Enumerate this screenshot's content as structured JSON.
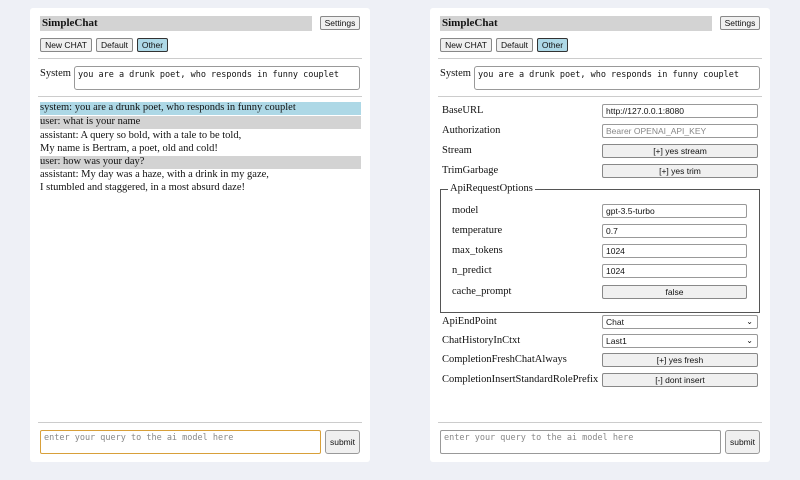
{
  "app_title": "SimpleChat",
  "settings_label": "Settings",
  "sessions": [
    "New CHAT",
    "Default",
    "Other"
  ],
  "system_label": "System",
  "system_prompt": "you are a drunk poet, who responds in funny couplet",
  "messages": [
    {
      "role": "system",
      "lines": [
        "system: you are a drunk poet, who responds in funny couplet"
      ]
    },
    {
      "role": "user",
      "lines": [
        "user: what is your name"
      ]
    },
    {
      "role": "assistant",
      "lines": [
        "assistant: A query so bold, with a tale to be told,",
        "My name is Bertram, a poet, old and cold!"
      ]
    },
    {
      "role": "user",
      "lines": [
        "user: how was your day?"
      ]
    },
    {
      "role": "assistant",
      "lines": [
        "assistant: My day was a haze, with a drink in my gaze,",
        "I stumbled and staggered, in a most absurd daze!"
      ]
    }
  ],
  "query_placeholder": "enter your query to the ai model here",
  "submit_label": "submit",
  "settings": {
    "base_url": {
      "label": "BaseURL",
      "value": "http://127.0.0.1:8080"
    },
    "authorization": {
      "label": "Authorization",
      "placeholder": "Bearer OPENAI_API_KEY"
    },
    "stream": {
      "label": "Stream",
      "value": "[+] yes stream"
    },
    "trim_garbage": {
      "label": "TrimGarbage",
      "value": "[+] yes trim"
    },
    "api_request_options": {
      "legend": "ApiRequestOptions",
      "model": {
        "label": "model",
        "value": "gpt-3.5-turbo"
      },
      "temperature": {
        "label": "temperature",
        "value": "0.7"
      },
      "max_tokens": {
        "label": "max_tokens",
        "value": "1024"
      },
      "n_predict": {
        "label": "n_predict",
        "value": "1024"
      },
      "cache_prompt": {
        "label": "cache_prompt",
        "value": "false"
      }
    },
    "api_endpoint": {
      "label": "ApiEndPoint",
      "value": "Chat"
    },
    "chat_history": {
      "label": "ChatHistoryInCtxt",
      "value": "Last1"
    },
    "fresh_chat": {
      "label": "CompletionFreshChatAlways",
      "value": "[+] yes fresh"
    },
    "role_prefix": {
      "label": "CompletionInsertStandardRolePrefix",
      "value": "[-] dont insert"
    }
  }
}
